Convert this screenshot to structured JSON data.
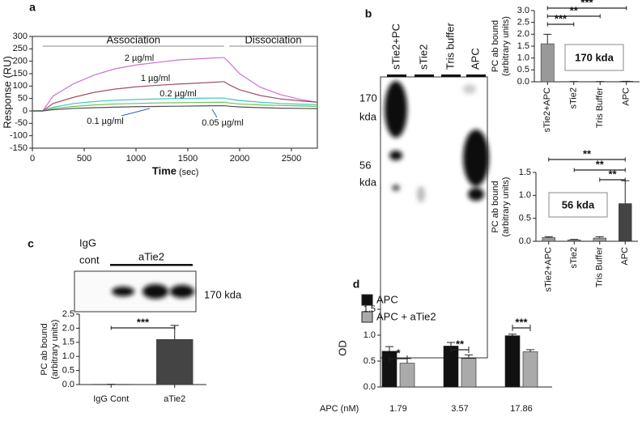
{
  "chart_data": [
    {
      "type": "line",
      "panel": "a",
      "x": [
        0,
        100,
        200,
        400,
        600,
        800,
        1000,
        1200,
        1400,
        1600,
        1850,
        1900,
        2000,
        2200,
        2400,
        2600,
        2750
      ],
      "series": [
        {
          "name": "2 µg/ml",
          "color": "#d070d0",
          "values": [
            0,
            0,
            60,
            110,
            145,
            170,
            185,
            195,
            205,
            210,
            215,
            195,
            150,
            95,
            65,
            45,
            35
          ]
        },
        {
          "name": "1 µg/ml",
          "color": "#a05060",
          "values": [
            0,
            0,
            30,
            55,
            75,
            88,
            97,
            103,
            108,
            112,
            118,
            105,
            85,
            62,
            48,
            40,
            35
          ]
        },
        {
          "name": "0.2 µg/ml",
          "color": "#40c8b8",
          "values": [
            0,
            0,
            15,
            30,
            38,
            43,
            46,
            48,
            50,
            51,
            52,
            48,
            42,
            35,
            30,
            27,
            25
          ]
        },
        {
          "name": "0.1 µg/ml",
          "color": "#70c060",
          "values": [
            0,
            0,
            10,
            18,
            24,
            28,
            30,
            32,
            33,
            34,
            35,
            32,
            28,
            24,
            22,
            20,
            18
          ]
        },
        {
          "name": "0.05 µg/ml",
          "color": "#505050",
          "values": [
            0,
            0,
            5,
            10,
            13,
            15,
            17,
            18,
            19,
            20,
            21,
            19,
            16,
            13,
            11,
            10,
            9
          ]
        }
      ],
      "xlim": [
        0,
        2750
      ],
      "xticks": [
        0,
        500,
        1000,
        1500,
        2000,
        2500
      ],
      "ylim": [
        -150,
        300
      ],
      "yticks": [
        -150,
        -100,
        -50,
        0,
        50,
        100,
        150,
        200,
        250,
        300
      ],
      "y_label": "Response (RU)",
      "x_label": "Time",
      "x_unit": "(sec)",
      "annotations": [
        "Association",
        "Dissociation"
      ]
    },
    {
      "type": "bar",
      "panel": "b",
      "categories": [
        "sTie2+APC",
        "sTie2",
        "Tris Buffer",
        "APC"
      ],
      "values": [
        1.6,
        0.01,
        0.01,
        0.02
      ],
      "errors": [
        0.4,
        0,
        0,
        0
      ],
      "colors": [
        "#999999",
        "#999999",
        "#999999",
        "#999999"
      ],
      "ylim": [
        0,
        3
      ],
      "yticks": [
        {
          "value": 0,
          "label": "0.0"
        },
        0.5,
        {
          "value": 1,
          "label": "1.0"
        },
        1.5,
        {
          "value": 2,
          "label": "2.0"
        },
        2.5,
        {
          "value": 3,
          "label": "3.0"
        }
      ],
      "y_label": [
        "PC ab bound",
        "(arbitrary units)"
      ],
      "box_label": "170 kda",
      "significance": [
        "***",
        "**",
        "***"
      ]
    },
    {
      "type": "bar",
      "categories": [
        "sTie2+APC",
        "sTie2",
        "Tris Buffer",
        "APC"
      ],
      "values": [
        0.08,
        0.03,
        0.07,
        0.82
      ],
      "errors": [
        0.02,
        0.01,
        0.03,
        0.5
      ],
      "colors": [
        "#999999",
        "#999999",
        "#999999",
        "#444444"
      ],
      "ylim": [
        0,
        1.5
      ],
      "yticks": [
        {
          "value": 0,
          "label": "0.0"
        },
        0.5,
        {
          "value": 1,
          "label": "1.0"
        },
        1.5
      ],
      "y_label": [
        "PC ab bound",
        "(arbitrary units)"
      ],
      "box_label": "56 kda",
      "significance": [
        "**",
        "**",
        "**"
      ]
    },
    {
      "type": "bar",
      "panel": "c",
      "categories": [
        "IgG Cont",
        "aTie2"
      ],
      "values": [
        0.01,
        1.6
      ],
      "errors": [
        0,
        0.5
      ],
      "colors": [
        "#444444",
        "#444444"
      ],
      "ylim": [
        0,
        2.5
      ],
      "yticks": [
        {
          "value": 0,
          "label": "0.0"
        },
        0.5,
        {
          "value": 1,
          "label": "1.0"
        },
        1.5,
        {
          "value": 2,
          "label": "2.0"
        },
        2.5
      ],
      "y_label": [
        "PC ab bound",
        "(arbitrary units)"
      ],
      "significance": [
        "***"
      ]
    },
    {
      "type": "grouped_bar",
      "panel": "d",
      "categories": [
        "1.79",
        "3.57",
        "17.86"
      ],
      "x_label": "APC (nM)",
      "series": [
        {
          "name": "APC",
          "color": "#111111",
          "values": [
            0.69,
            0.79,
            0.99
          ],
          "errors": [
            0.09,
            0.07,
            0.03
          ]
        },
        {
          "name": "APC + aTie2",
          "color": "#aaaaaa",
          "values": [
            0.46,
            0.55,
            0.68
          ],
          "errors": [
            0.09,
            0.07,
            0.04
          ]
        }
      ],
      "ylim": [
        0,
        1.5
      ],
      "yticks": [
        {
          "value": 0,
          "label": "0.0"
        },
        0.5,
        {
          "value": 1,
          "label": "1.0"
        },
        1.5
      ],
      "y_label": "OD",
      "legend": "upper left",
      "significance": [
        "*",
        "**",
        "***"
      ]
    }
  ],
  "blot_b": {
    "lanes": [
      "sTie2+PC",
      "sTie2",
      "Tris buffer",
      "APC"
    ],
    "markers": [
      [
        "170",
        "kda"
      ],
      [
        "56",
        "kda"
      ]
    ]
  },
  "blot_c": {
    "lanes": [
      [
        "IgG",
        "cont"
      ],
      [
        "aTie2"
      ]
    ],
    "marker": "170 kda"
  }
}
